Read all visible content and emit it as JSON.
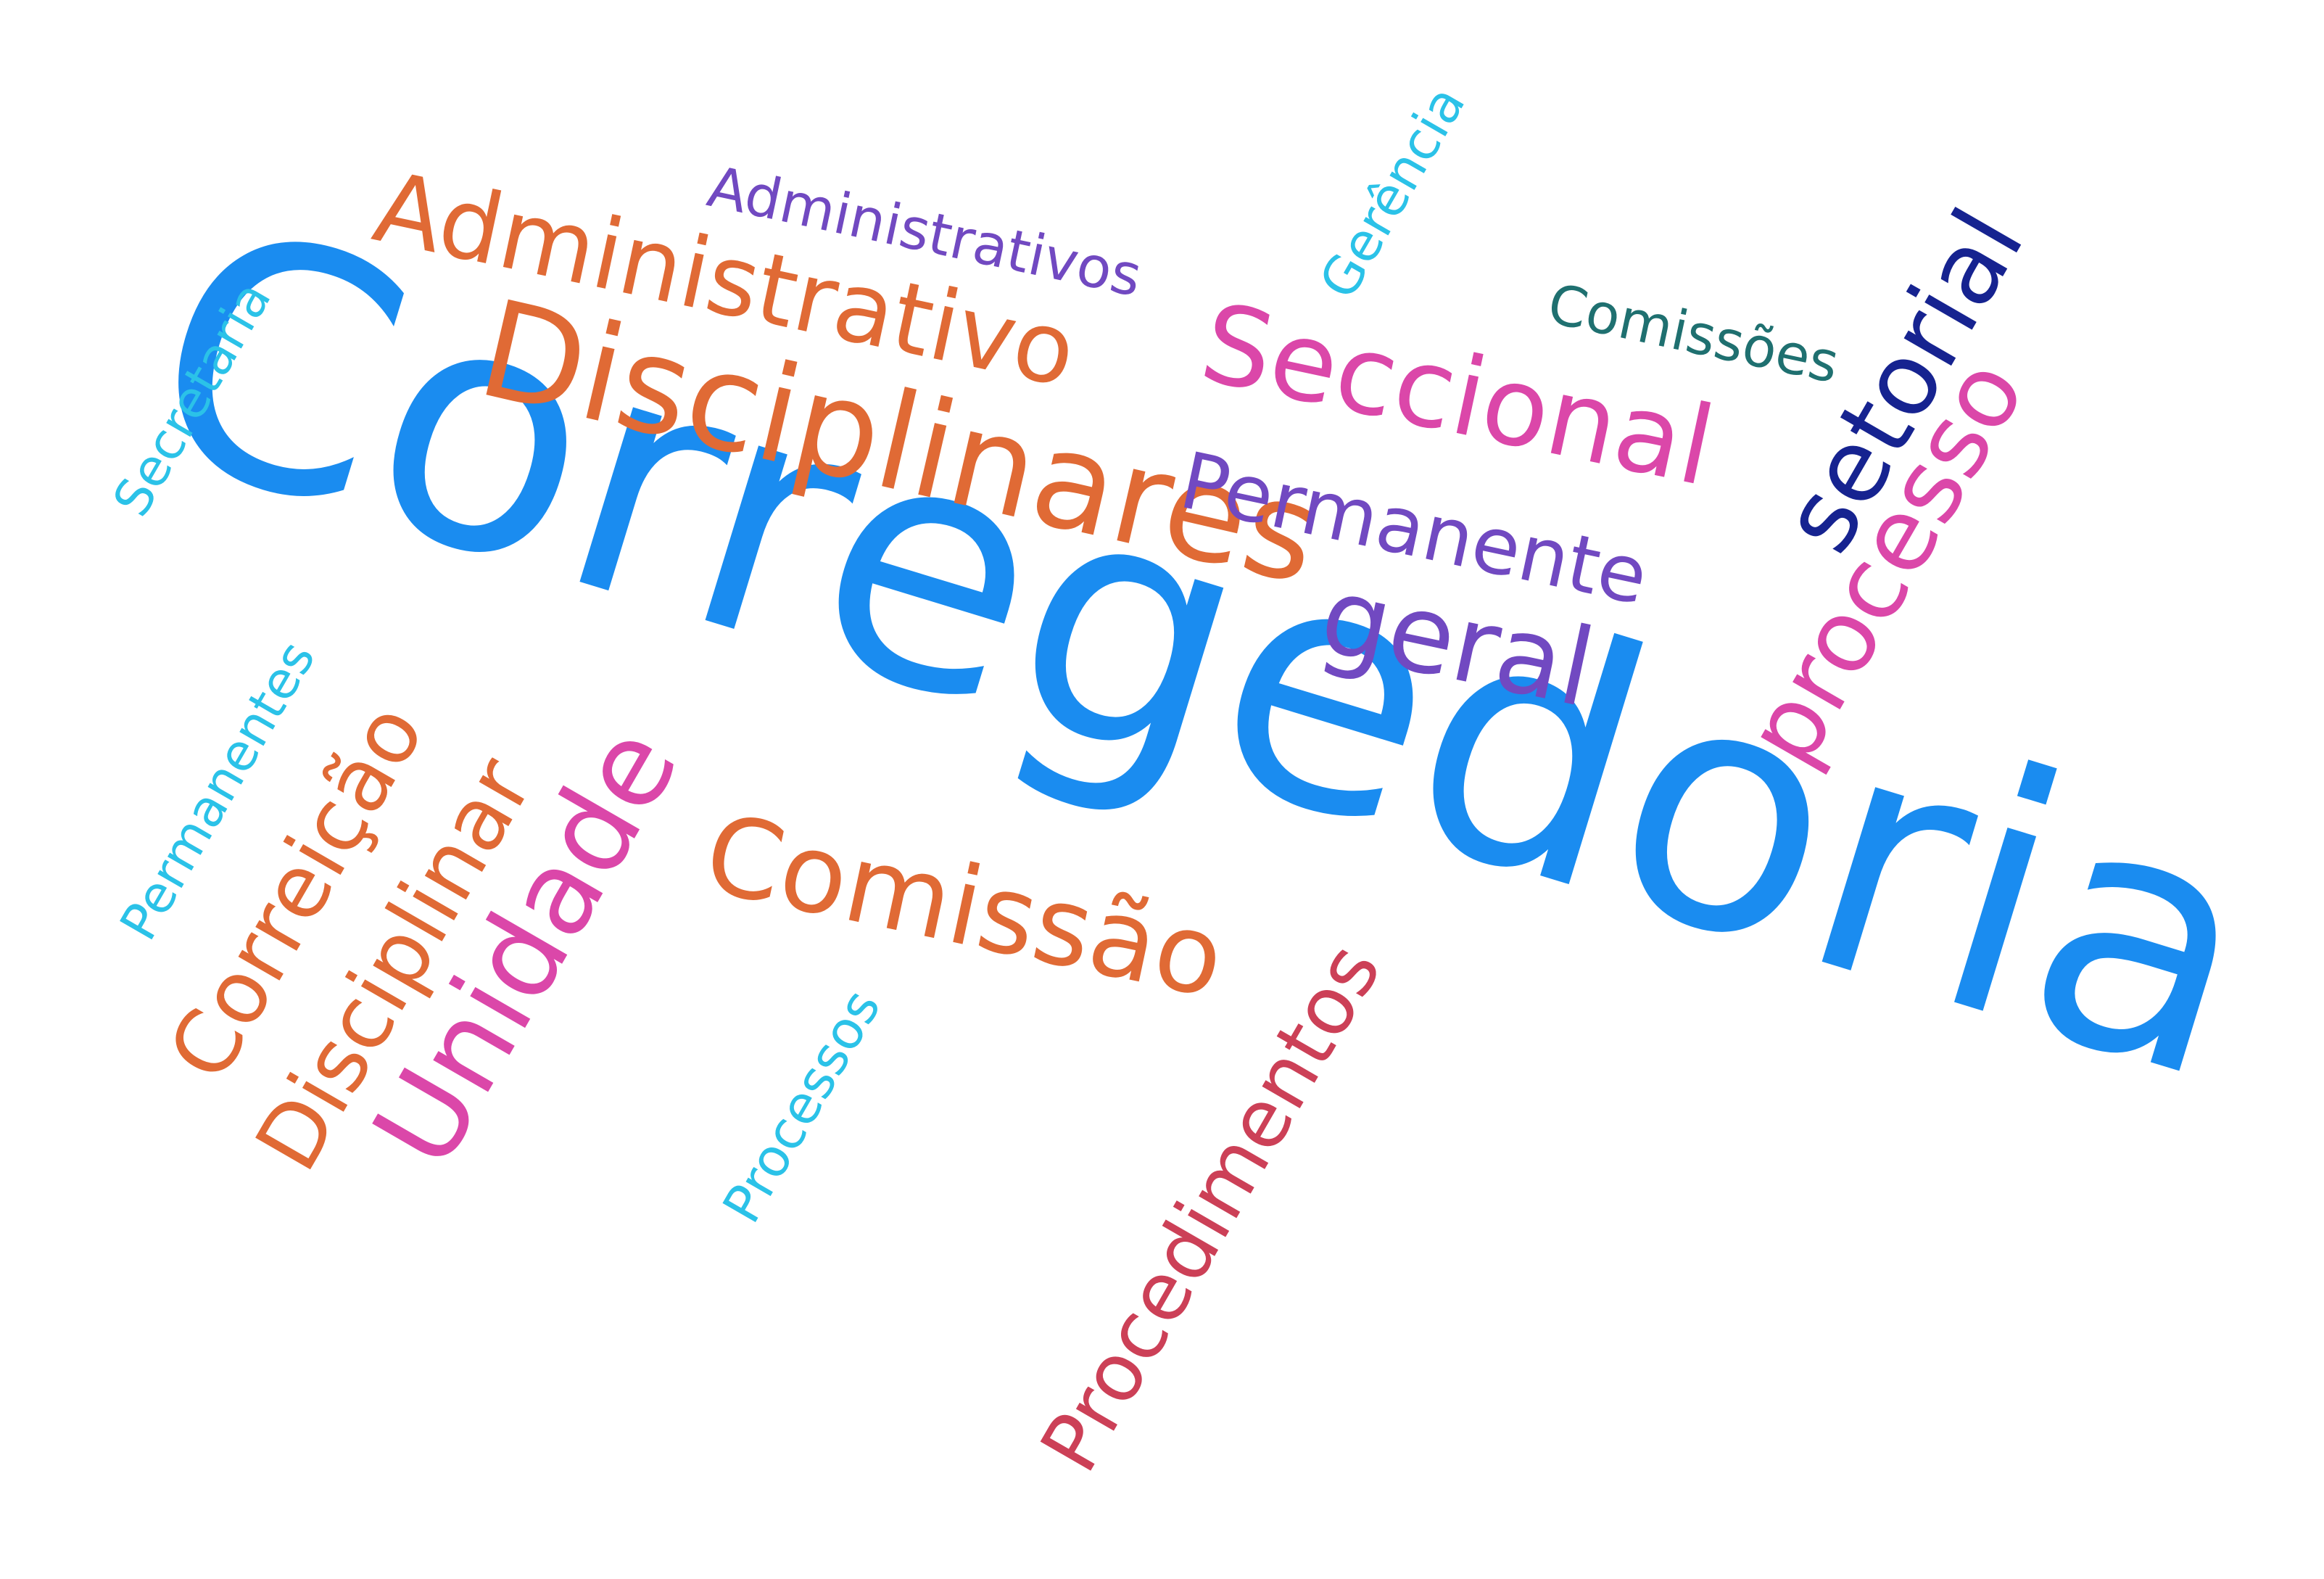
{
  "cloud": {
    "words": [
      {
        "key": "corregedoria",
        "text": "Corregedoria",
        "color": "#1a8cf0"
      },
      {
        "key": "disciplinares",
        "text": "Disciplinares",
        "color": "#e06a35"
      },
      {
        "key": "administrativo",
        "text": "Administrativo",
        "color": "#e06a35"
      },
      {
        "key": "administrativos",
        "text": "Administrativos",
        "color": "#7149c1"
      },
      {
        "key": "seccional",
        "text": "Seccional",
        "color": "#db47a9"
      },
      {
        "key": "permanente",
        "text": "Permanente",
        "color": "#7149c1"
      },
      {
        "key": "geral",
        "text": "geral",
        "color": "#7149c1"
      },
      {
        "key": "comissoes",
        "text": "Comissões",
        "color": "#1f7070"
      },
      {
        "key": "setorial",
        "text": "setorial",
        "color": "#162390"
      },
      {
        "key": "processo",
        "text": "processo",
        "color": "#db47a9"
      },
      {
        "key": "gerencia",
        "text": "Gerência",
        "color": "#2bc2e8"
      },
      {
        "key": "secretaria",
        "text": "Secretaria",
        "color": "#2bc2e8"
      },
      {
        "key": "permanentes",
        "text": "Permanentes",
        "color": "#2bc2e8"
      },
      {
        "key": "correicao",
        "text": "Correição",
        "color": "#e06a35"
      },
      {
        "key": "disciplinar",
        "text": "Disciplinar",
        "color": "#e06a35"
      },
      {
        "key": "unidade",
        "text": "Unidade",
        "color": "#db47a9"
      },
      {
        "key": "comissao",
        "text": "Comissão",
        "color": "#e06a35"
      },
      {
        "key": "processos",
        "text": "Processos",
        "color": "#2bc2e8"
      },
      {
        "key": "procedimentos",
        "text": "Procedimentos",
        "color": "#cc4057"
      }
    ]
  }
}
